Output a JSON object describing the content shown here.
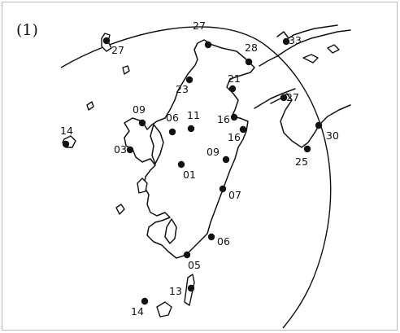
{
  "figure": {
    "label": "(1)"
  },
  "stations": [
    {
      "value": "27"
    },
    {
      "value": "27"
    },
    {
      "value": "28"
    },
    {
      "value": "33"
    },
    {
      "value": "21"
    },
    {
      "value": "23"
    },
    {
      "value": "27"
    },
    {
      "value": "09"
    },
    {
      "value": "06"
    },
    {
      "value": "11"
    },
    {
      "value": "16"
    },
    {
      "value": "16"
    },
    {
      "value": "14"
    },
    {
      "value": "03"
    },
    {
      "value": "09"
    },
    {
      "value": "30"
    },
    {
      "value": "25"
    },
    {
      "value": "01"
    },
    {
      "value": "07"
    },
    {
      "value": "06"
    },
    {
      "value": "05"
    },
    {
      "value": "13"
    },
    {
      "value": "14"
    }
  ],
  "colors": {
    "ink": "#111111",
    "frame": "#b9b9b9",
    "background": "#ffffff"
  }
}
